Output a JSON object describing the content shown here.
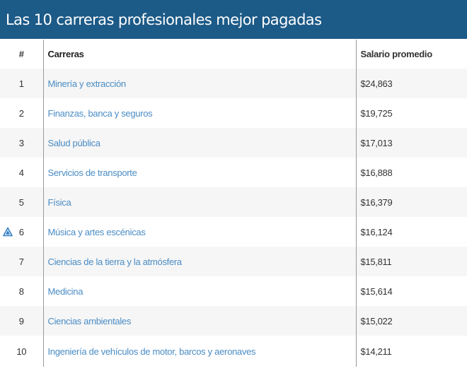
{
  "header": {
    "title": "Las 10 carreras profesionales mejor pagadas",
    "bg_color": "#1c5a87"
  },
  "table": {
    "columns": {
      "num": "#",
      "career": "Carreras",
      "salary": "Salario promedio"
    },
    "rows": [
      {
        "num": "1",
        "career": "Minería y extracción",
        "salary": "$24,863"
      },
      {
        "num": "2",
        "career": "Finanzas, banca y seguros",
        "salary": "$19,725"
      },
      {
        "num": "3",
        "career": "Salud pública",
        "salary": "$17,013"
      },
      {
        "num": "4",
        "career": "Servicios de transporte",
        "salary": "$16,888"
      },
      {
        "num": "5",
        "career": "Física",
        "salary": "$16,379"
      },
      {
        "num": "6",
        "career": "Música y artes escénicas",
        "salary": "$16,124",
        "icon": "warning-triangle-icon"
      },
      {
        "num": "7",
        "career": "Ciencias de la tierra y la atmósfera",
        "salary": "$15,811"
      },
      {
        "num": "8",
        "career": "Medicina",
        "salary": "$15,614"
      },
      {
        "num": "9",
        "career": "Ciencias ambientales",
        "salary": "$15,022"
      },
      {
        "num": "10",
        "career": "Ingeniería de vehículos de motor, barcos y aeronaves",
        "salary": "$14,211"
      }
    ],
    "link_color": "#4a8cc4"
  }
}
